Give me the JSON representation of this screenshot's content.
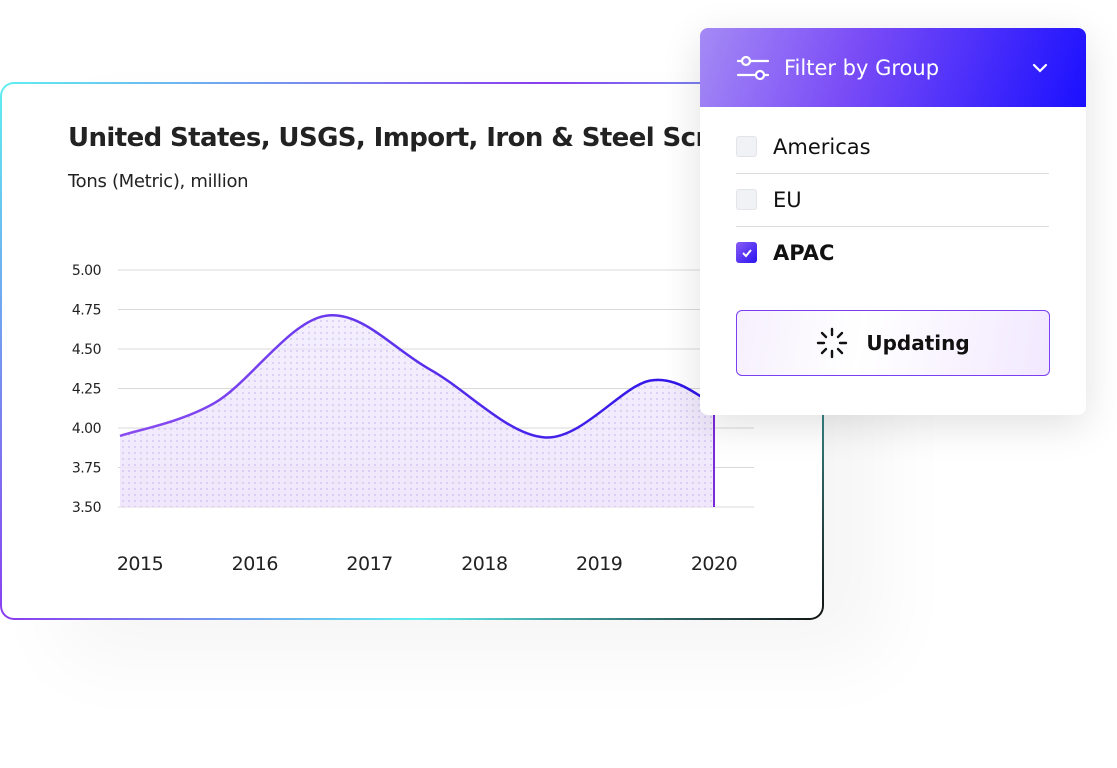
{
  "chart_data": {
    "type": "area",
    "title": "United States, USGS, Import, Iron & Steel Scrap",
    "subtitle": "Tons (Metric), million",
    "x": [
      2015,
      2015.8,
      2016.73,
      2017.61,
      2018.58,
      2019.46,
      2020
    ],
    "series": [
      {
        "color": "#4b2be0",
        "values": [
          3.95,
          4.16,
          4.71,
          4.37,
          3.94,
          4.3,
          4.15
        ]
      }
    ],
    "xlim": [
      2015,
      2020
    ],
    "xticks": [
      2015,
      2016,
      2017,
      2018,
      2019,
      2020
    ],
    "ylim": [
      3.5,
      5
    ],
    "yticks": [
      {
        "value": 3.5,
        "label": "3.50"
      },
      {
        "value": 3.75,
        "label": "3.75"
      },
      {
        "value": 4,
        "label": "4.00"
      },
      {
        "value": 4.25,
        "label": "4.25"
      },
      {
        "value": 4.5,
        "label": "4.50"
      },
      {
        "value": 4.75,
        "label": "4.75"
      },
      {
        "value": 5,
        "label": "5.00"
      }
    ],
    "grid": true
  },
  "filter": {
    "title": "Filter by Group",
    "options": [
      {
        "label": "Americas",
        "checked": false
      },
      {
        "label": "EU",
        "checked": false
      },
      {
        "label": "APAC",
        "checked": true
      }
    ],
    "button": "Updating"
  }
}
